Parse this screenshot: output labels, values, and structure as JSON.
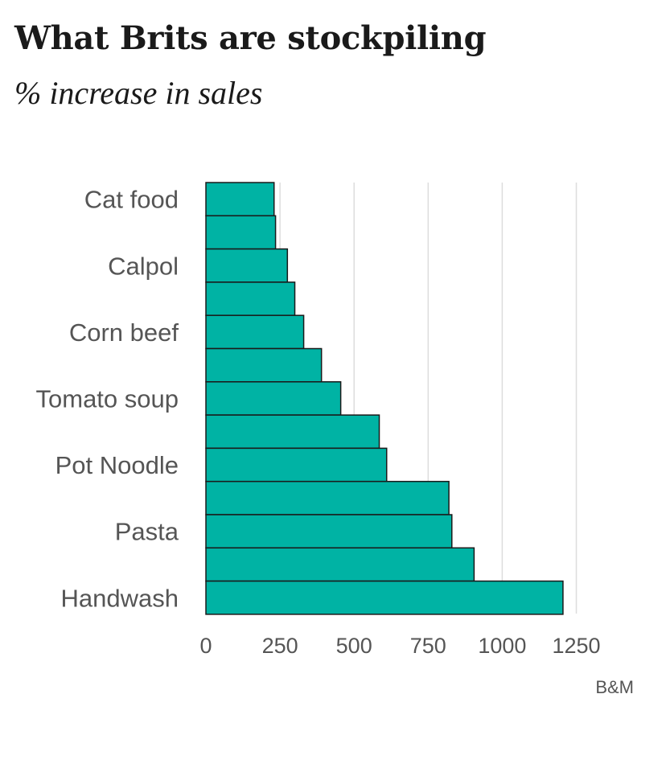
{
  "title": "What Brits are stockpiling",
  "subtitle": "% increase in sales",
  "source": "B&M",
  "colors": {
    "bar": "#00b3a4",
    "bar_stroke": "#1a1a1a",
    "grid": "#dddddd",
    "text": "#555555"
  },
  "chart_data": {
    "type": "bar",
    "orientation": "horizontal",
    "categories": [
      "Cat food",
      "",
      "Calpol",
      "",
      "Corn beef",
      "",
      "Tomato soup",
      "",
      "Pot Noodle",
      "",
      "Pasta",
      "",
      "Handwash"
    ],
    "values": [
      230,
      235,
      275,
      300,
      330,
      390,
      455,
      585,
      610,
      820,
      830,
      905,
      1205
    ],
    "x_ticks": [
      0,
      250,
      500,
      750,
      1000,
      1250
    ],
    "xlim": [
      0,
      1300
    ],
    "grid": true,
    "legend": "none"
  }
}
